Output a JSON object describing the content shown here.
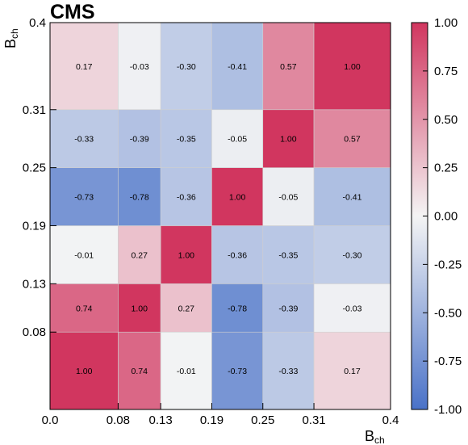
{
  "experiment_label": "CMS",
  "chart_data": {
    "type": "heatmap",
    "x_bin_edges": [
      0.0,
      0.08,
      0.13,
      0.19,
      0.25,
      0.31,
      0.4
    ],
    "y_bin_edges": [
      0.0,
      0.08,
      0.13,
      0.19,
      0.25,
      0.31,
      0.4
    ],
    "x_tick_labels": [
      "0.0",
      "0.08",
      "0.13",
      "0.19",
      "0.25",
      "0.31",
      "0.4"
    ],
    "y_tick_labels": [
      "0.08",
      "0.13",
      "0.19",
      "0.25",
      "0.31",
      "0.4"
    ],
    "xlabel": {
      "main": "B",
      "sub": "ch"
    },
    "ylabel": {
      "main": "B",
      "sub": "ch"
    },
    "values_rows_bottom_to_top": [
      [
        1.0,
        0.74,
        -0.01,
        -0.73,
        -0.33,
        0.17
      ],
      [
        0.74,
        1.0,
        0.27,
        -0.78,
        -0.39,
        -0.03
      ],
      [
        -0.01,
        0.27,
        1.0,
        -0.36,
        -0.35,
        -0.3
      ],
      [
        -0.73,
        -0.78,
        -0.36,
        1.0,
        -0.05,
        -0.41
      ],
      [
        -0.33,
        -0.39,
        -0.35,
        -0.05,
        1.0,
        0.57
      ],
      [
        0.17,
        -0.03,
        -0.3,
        -0.41,
        0.57,
        1.0
      ]
    ],
    "value_labels_rows_bottom_to_top": [
      [
        "1.00",
        "0.74",
        "-0.01",
        "-0.73",
        "-0.33",
        "0.17"
      ],
      [
        "0.74",
        "1.00",
        "0.27",
        "-0.78",
        "-0.39",
        "-0.03"
      ],
      [
        "-0.01",
        "0.27",
        "1.00",
        "-0.36",
        "-0.35",
        "-0.30"
      ],
      [
        "-0.73",
        "-0.78",
        "-0.36",
        "1.00",
        "-0.05",
        "-0.41"
      ],
      [
        "-0.33",
        "-0.39",
        "-0.35",
        "-0.05",
        "1.00",
        "0.57"
      ],
      [
        "0.17",
        "-0.03",
        "-0.30",
        "-0.41",
        "0.57",
        "1.00"
      ]
    ],
    "zlim": [
      -1.0,
      1.0
    ],
    "colorbar": {
      "ticks": [
        1.0,
        0.75,
        0.5,
        0.25,
        0.0,
        -0.25,
        -0.5,
        -0.75,
        -1.0
      ],
      "tick_labels": [
        "1.00",
        "0.75",
        "0.50",
        "0.25",
        "0.00",
        "-0.25",
        "-0.50",
        "-0.75",
        "-1.00"
      ],
      "color_low": "#4a72c8",
      "color_mid": "#f4f4f4",
      "color_high": "#d1365f"
    },
    "grid": false,
    "legend": "none"
  }
}
